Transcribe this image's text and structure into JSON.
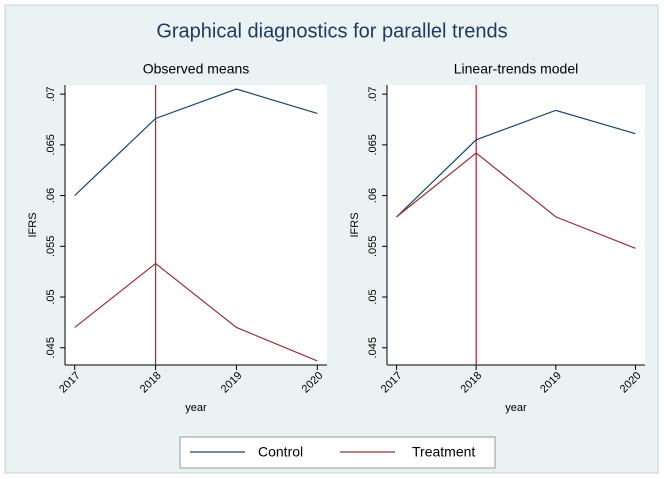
{
  "title": "Graphical diagnostics for parallel trends",
  "chart_data": [
    {
      "type": "line",
      "title": "Observed means",
      "xlabel": "year",
      "ylabel": "IFRS",
      "x": [
        2017,
        2018,
        2019,
        2020
      ],
      "series": [
        {
          "name": "Control",
          "color": "#1a476f",
          "values": [
            0.06,
            0.0676,
            0.0705,
            0.0681
          ]
        },
        {
          "name": "Treatment",
          "color": "#90353b",
          "values": [
            0.047,
            0.0533,
            0.047,
            0.0437
          ]
        }
      ],
      "xline": 2018,
      "xline_color": "#a3304a",
      "xlim": [
        2016.88,
        2020.12
      ],
      "xticks": [
        2017,
        2018,
        2019,
        2020
      ],
      "ylim": [
        0.0433,
        0.0709
      ],
      "yticks": [
        {
          "value": 0.045,
          "label": ".045"
        },
        {
          "value": 0.05,
          "label": ".05"
        },
        {
          "value": 0.055,
          "label": ".055"
        },
        {
          "value": 0.06,
          "label": ".06"
        },
        {
          "value": 0.065,
          "label": ".065"
        },
        {
          "value": 0.07,
          "label": ".07"
        }
      ],
      "grid": false
    },
    {
      "type": "line",
      "title": "Linear-trends model",
      "xlabel": "year",
      "ylabel": "IFRS",
      "x": [
        2017,
        2018,
        2019,
        2020
      ],
      "series": [
        {
          "name": "Control",
          "color": "#1a476f",
          "values": [
            0.0579,
            0.0655,
            0.0684,
            0.0661
          ]
        },
        {
          "name": "Treatment",
          "color": "#90353b",
          "values": [
            0.0579,
            0.0642,
            0.0579,
            0.0548
          ]
        }
      ],
      "xline": 2018,
      "xline_color": "#a3304a",
      "xlim": [
        2016.88,
        2020.12
      ],
      "xticks": [
        2017,
        2018,
        2019,
        2020
      ],
      "ylim": [
        0.0433,
        0.0709
      ],
      "yticks": [
        {
          "value": 0.045,
          "label": ".045"
        },
        {
          "value": 0.05,
          "label": ".05"
        },
        {
          "value": 0.055,
          "label": ".055"
        },
        {
          "value": 0.06,
          "label": ".06"
        },
        {
          "value": 0.065,
          "label": ".065"
        },
        {
          "value": 0.07,
          "label": ".07"
        }
      ],
      "grid": false
    }
  ]
}
